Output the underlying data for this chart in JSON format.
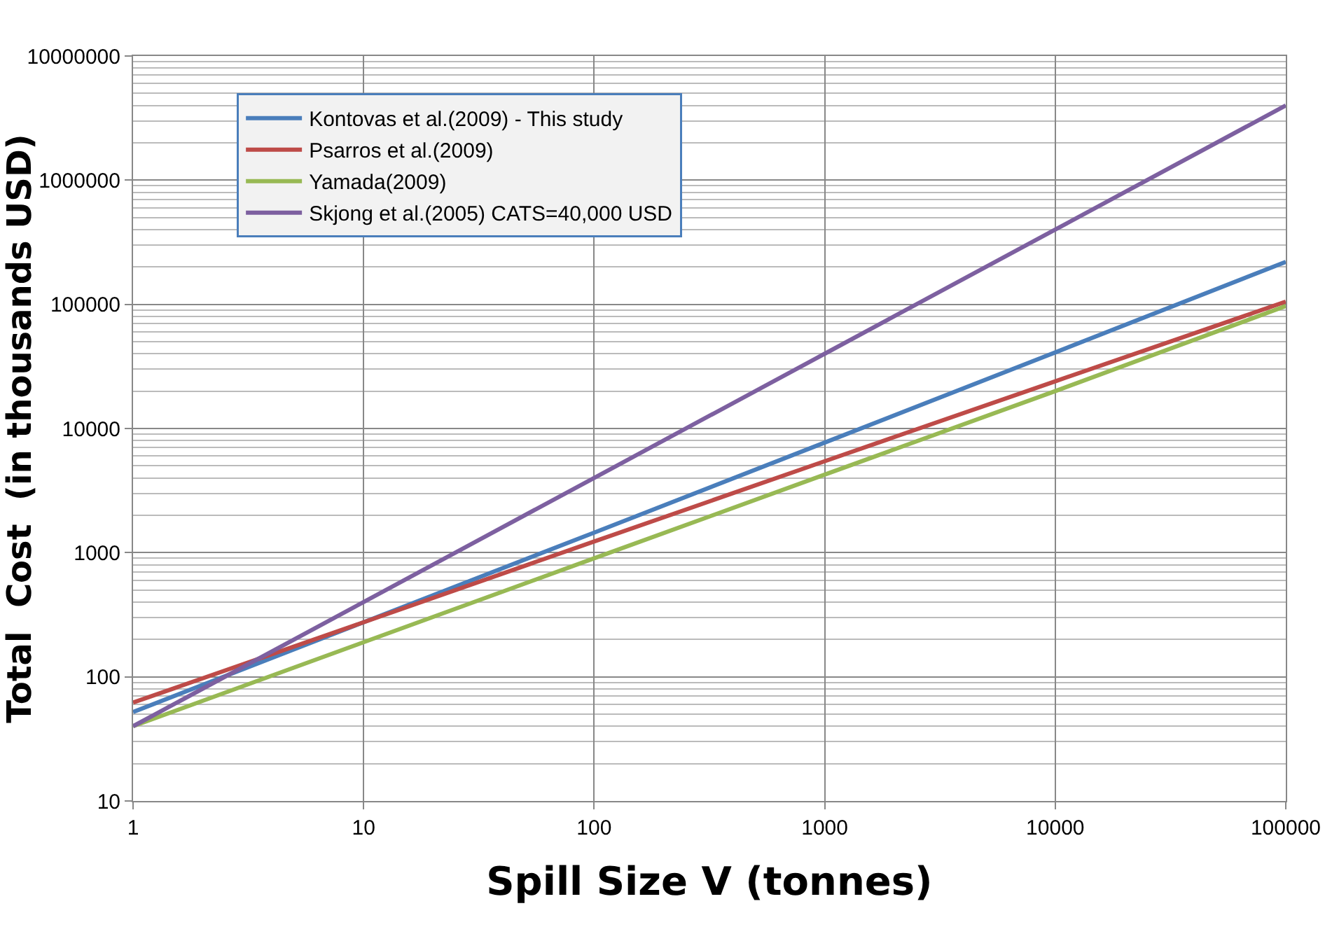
{
  "chart_data": {
    "type": "line",
    "xlabel": "Spill Size V (tonnes)",
    "ylabel": "Total  Cost  (in thousands USD)",
    "log": "xy",
    "x": [
      1,
      10,
      100,
      1000,
      10000,
      100000
    ],
    "series": [
      {
        "name": "Kontovas et al.(2009) - This study",
        "color": "#4a7ebb",
        "values": [
          52,
          275,
          1450,
          7700,
          41000,
          220000
        ]
      },
      {
        "name": "Psarros et al.(2009)",
        "color": "#be4b48",
        "values": [
          62,
          275,
          1230,
          5450,
          24000,
          105000
        ]
      },
      {
        "name": "Yamada(2009)",
        "color": "#98b954",
        "values": [
          40,
          190,
          900,
          4250,
          20000,
          97000
        ]
      },
      {
        "name": "Skjong et al.(2005) CATS=40,000 USD",
        "color": "#7d60a0",
        "values": [
          40,
          400,
          4000,
          40000,
          400000,
          4000000
        ]
      }
    ],
    "xlim": [
      1,
      100000
    ],
    "xticks": [
      1,
      10,
      100,
      1000,
      10000,
      100000
    ],
    "ylim": [
      10,
      10000000
    ],
    "yticks": [
      10,
      100,
      1000,
      10000,
      100000,
      1000000,
      10000000
    ],
    "grid": true,
    "legend": "top left",
    "marker": "none",
    "line_style": "solid"
  }
}
